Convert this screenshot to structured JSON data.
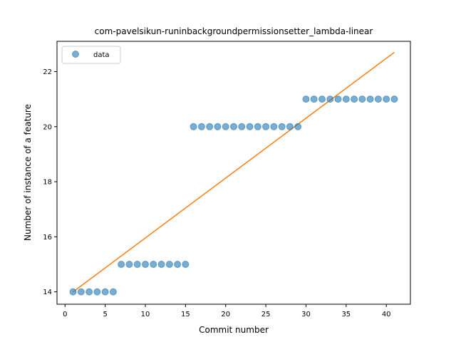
{
  "chart_data": {
    "type": "scatter",
    "title": "com-pavelsikun-runinbackgroundpermissionsetter_lambda-linear",
    "xlabel": "Commit number",
    "ylabel": "Number of instance of a feature",
    "xlim": [
      -1,
      43
    ],
    "ylim": [
      13.55,
      23.1
    ],
    "xticks": [
      0,
      5,
      10,
      15,
      20,
      25,
      30,
      35,
      40
    ],
    "yticks": [
      14,
      16,
      18,
      20,
      22
    ],
    "grid": false,
    "legend_position": "top-left",
    "colors": {
      "data": "#1f77b4",
      "fit": "#ff7f0e"
    },
    "series": [
      {
        "name": "data",
        "kind": "scatter",
        "x": [
          1,
          2,
          3,
          4,
          5,
          6,
          7,
          8,
          9,
          10,
          11,
          12,
          13,
          14,
          15,
          16,
          17,
          18,
          19,
          20,
          21,
          22,
          23,
          24,
          25,
          26,
          27,
          28,
          29,
          30,
          31,
          32,
          33,
          34,
          35,
          36,
          37,
          38,
          39,
          40,
          41
        ],
        "y": [
          14,
          14,
          14,
          14,
          14,
          14,
          15,
          15,
          15,
          15,
          15,
          15,
          15,
          15,
          15,
          20,
          20,
          20,
          20,
          20,
          20,
          20,
          20,
          20,
          20,
          20,
          20,
          20,
          20,
          21,
          21,
          21,
          21,
          21,
          21,
          21,
          21,
          21,
          21,
          21,
          21
        ]
      },
      {
        "kind": "line",
        "x": [
          1,
          41
        ],
        "y": [
          14.0,
          22.7
        ]
      }
    ]
  }
}
